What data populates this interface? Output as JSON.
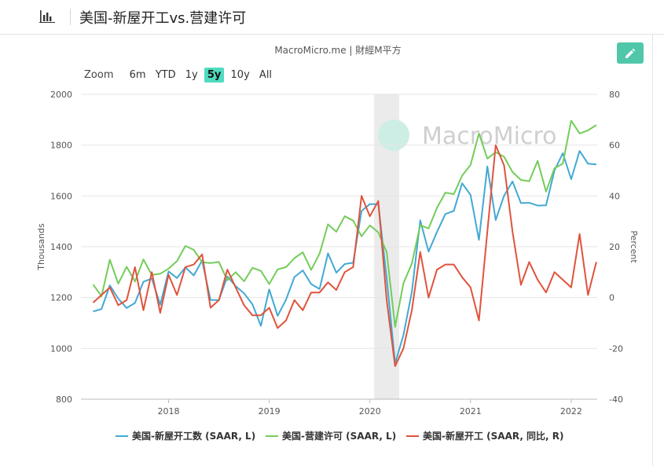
{
  "header": {
    "title": "美国-新屋开工vs.营建许可",
    "chart_icon": "bar-chart-icon"
  },
  "source_label": "MacroMicro.me | 財經M平方",
  "watermark": "MacroMicro",
  "zoom": {
    "label": "Zoom",
    "options": [
      "6m",
      "YTD",
      "1y",
      "5y",
      "10y",
      "All"
    ],
    "active": "5y"
  },
  "edit_button": {
    "icon": "pencil-icon"
  },
  "colors": {
    "starts": "#42a9d3",
    "permits": "#74cc5a",
    "yoy": "#e0533d",
    "accent": "#4fc7a8",
    "recession": "#ebebeb"
  },
  "chart_data": {
    "type": "line",
    "x_dates": [
      "2017-04",
      "2017-05",
      "2017-06",
      "2017-07",
      "2017-08",
      "2017-09",
      "2017-10",
      "2017-11",
      "2017-12",
      "2018-01",
      "2018-02",
      "2018-03",
      "2018-04",
      "2018-05",
      "2018-06",
      "2018-07",
      "2018-08",
      "2018-09",
      "2018-10",
      "2018-11",
      "2018-12",
      "2019-01",
      "2019-02",
      "2019-03",
      "2019-04",
      "2019-05",
      "2019-06",
      "2019-07",
      "2019-08",
      "2019-09",
      "2019-10",
      "2019-11",
      "2019-12",
      "2020-01",
      "2020-02",
      "2020-03",
      "2020-04",
      "2020-05",
      "2020-06",
      "2020-07",
      "2020-08",
      "2020-09",
      "2020-10",
      "2020-11",
      "2020-12",
      "2021-01",
      "2021-02",
      "2021-03",
      "2021-04",
      "2021-05",
      "2021-06",
      "2021-07",
      "2021-08",
      "2021-09",
      "2021-10",
      "2021-11",
      "2021-12",
      "2022-01",
      "2022-02",
      "2022-03",
      "2022-04"
    ],
    "series": [
      {
        "name": "美国-新屋开工数 (SAAR, L)",
        "axis": "left",
        "values": [
          1145,
          1155,
          1248,
          1196,
          1159,
          1179,
          1262,
          1275,
          1172,
          1303,
          1277,
          1319,
          1287,
          1346,
          1191,
          1190,
          1283,
          1245,
          1217,
          1173,
          1089,
          1232,
          1128,
          1192,
          1281,
          1307,
          1253,
          1234,
          1374,
          1298,
          1332,
          1337,
          1541,
          1568,
          1568,
          1276,
          941,
          1052,
          1222,
          1504,
          1381,
          1458,
          1529,
          1541,
          1650,
          1604,
          1427,
          1716,
          1505,
          1601,
          1657,
          1572,
          1573,
          1562,
          1563,
          1700,
          1768,
          1666,
          1777,
          1727,
          1724
        ]
      },
      {
        "name": "美国-营建许可 (SAAR, L)",
        "axis": "left",
        "values": [
          1252,
          1205,
          1349,
          1255,
          1321,
          1263,
          1350,
          1289,
          1294,
          1314,
          1343,
          1403,
          1388,
          1339,
          1336,
          1340,
          1268,
          1300,
          1264,
          1317,
          1305,
          1253,
          1311,
          1320,
          1355,
          1378,
          1309,
          1373,
          1488,
          1459,
          1520,
          1503,
          1441,
          1484,
          1457,
          1379,
          1085,
          1256,
          1334,
          1485,
          1472,
          1553,
          1613,
          1607,
          1680,
          1722,
          1846,
          1747,
          1772,
          1754,
          1694,
          1663,
          1658,
          1738,
          1617,
          1709,
          1727,
          1896,
          1846,
          1858,
          1879
        ]
      },
      {
        "name": "美国-新屋开工 (SAAR, 同比, R)",
        "axis": "right",
        "values": [
          -2,
          1,
          4,
          -3,
          -1,
          12,
          -5,
          10,
          -6,
          9,
          1,
          12,
          13,
          17,
          -4,
          -1,
          11,
          4,
          -3,
          -7,
          -7,
          -4,
          -12,
          -9,
          -1,
          -5,
          2,
          2,
          6,
          3,
          10,
          12,
          40,
          32,
          38,
          -1,
          -27,
          -20,
          -5,
          18,
          0,
          11,
          13,
          13,
          8,
          4,
          -9,
          26,
          60,
          52,
          26,
          5,
          14,
          7,
          2,
          10,
          7,
          4,
          25,
          1,
          14
        ]
      }
    ],
    "xlabel": "",
    "ylabel_left": "Thousands",
    "ylabel_right": "Percent",
    "ylim_left": [
      800,
      2000
    ],
    "ylim_right": [
      -40,
      80
    ],
    "yticks_left": [
      800,
      1000,
      1200,
      1400,
      1600,
      1800,
      2000
    ],
    "yticks_right": [
      -40,
      -20,
      0,
      20,
      40,
      60,
      80
    ],
    "xticks": [
      "2018",
      "2019",
      "2020",
      "2021",
      "2022"
    ],
    "shaded_period": [
      "2020-02",
      "2020-04"
    ],
    "grid": true,
    "legend_position": "bottom"
  }
}
